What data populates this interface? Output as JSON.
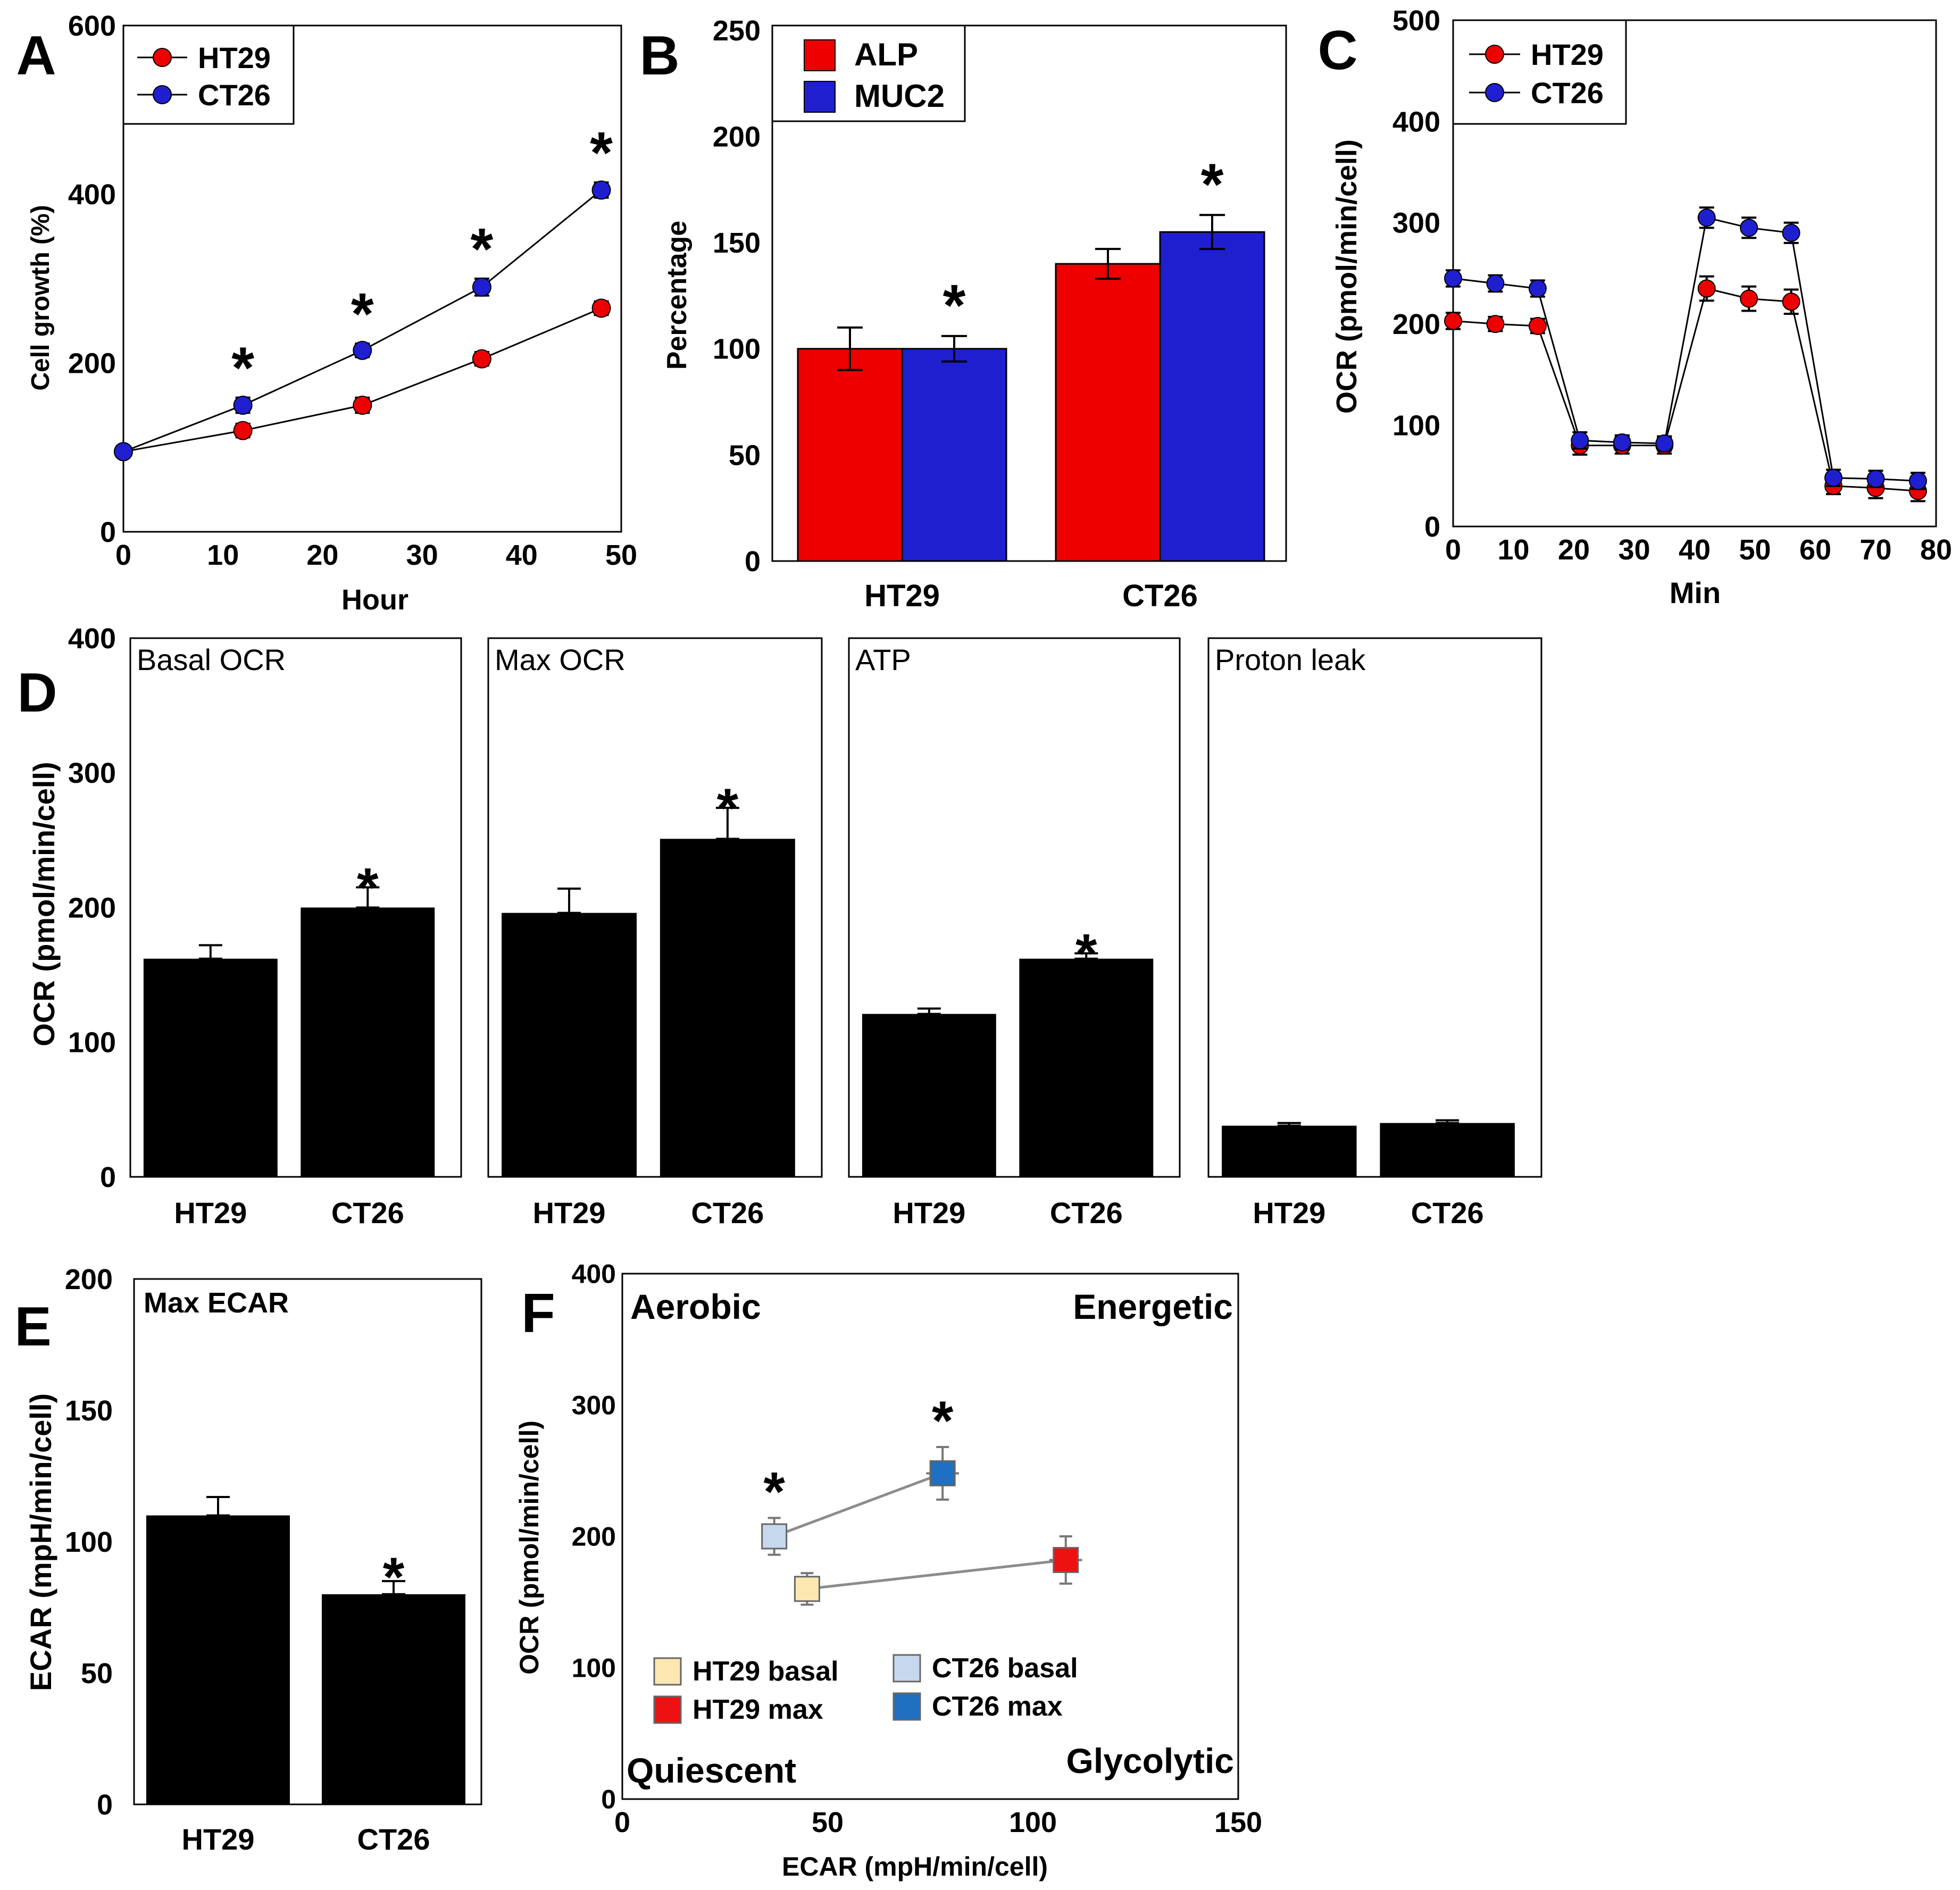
{
  "figure_description": "Multi-panel scientific figure comparing HT29 and CT26 cells",
  "colors": {
    "red": "#ee0000",
    "blue": "#1f1fd0",
    "black": "#000000",
    "grey_line": "#8c8c8c",
    "ht29_basal": "#fde7b0",
    "ht29_max": "#ee1111",
    "ct26_basal": "#c6d8ee",
    "ct26_max": "#1f70c0"
  },
  "chart_data": [
    {
      "id": "A",
      "panel_letter": "A",
      "type": "line",
      "xlabel": "Hour",
      "ylabel": "Cell  growth (%)",
      "xlim": [
        0,
        50
      ],
      "ylim": [
        0,
        600
      ],
      "xticks": [
        0,
        10,
        20,
        30,
        40,
        50
      ],
      "yticks": [
        0,
        200,
        400,
        600
      ],
      "legend": [
        "HT29",
        "CT26"
      ],
      "series": [
        {
          "name": "HT29",
          "color": "red",
          "x": [
            0,
            12,
            24,
            36,
            48
          ],
          "y": [
            95,
            120,
            150,
            205,
            265
          ],
          "err": [
            6,
            8,
            9,
            8,
            8
          ]
        },
        {
          "name": "CT26",
          "color": "blue",
          "x": [
            0,
            12,
            24,
            36,
            48
          ],
          "y": [
            95,
            150,
            215,
            290,
            405
          ],
          "err": [
            6,
            9,
            8,
            10,
            9
          ]
        }
      ],
      "significance": [
        {
          "x": 12,
          "label": "*"
        },
        {
          "x": 24,
          "label": "*"
        },
        {
          "x": 36,
          "label": "*"
        },
        {
          "x": 48,
          "label": "*"
        }
      ]
    },
    {
      "id": "B",
      "panel_letter": "B",
      "type": "bar",
      "xlabel": "",
      "ylabel": "Percentage",
      "ylim": [
        0,
        250
      ],
      "yticks": [
        0,
        50,
        100,
        150,
        200,
        250
      ],
      "categories": [
        "HT29",
        "CT26"
      ],
      "legend": [
        "ALP",
        "MUC2"
      ],
      "series": [
        {
          "name": "ALP",
          "color": "red",
          "values": [
            100,
            140
          ],
          "err": [
            10,
            7
          ]
        },
        {
          "name": "MUC2",
          "color": "blue",
          "values": [
            100,
            155
          ],
          "err": [
            6,
            8
          ]
        }
      ],
      "significance": [
        {
          "category": 0,
          "series": 1,
          "label": "*"
        },
        {
          "category": 1,
          "series": 1,
          "label": "*"
        }
      ]
    },
    {
      "id": "C",
      "panel_letter": "C",
      "type": "line",
      "xlabel": "Min",
      "ylabel": "OCR (pmol/min/cell)",
      "xlim": [
        0,
        80
      ],
      "ylim": [
        0,
        500
      ],
      "xticks": [
        0,
        10,
        20,
        30,
        40,
        50,
        60,
        70,
        80
      ],
      "yticks": [
        0,
        100,
        200,
        300,
        400,
        500
      ],
      "legend": [
        "HT29",
        "CT26"
      ],
      "series": [
        {
          "name": "HT29",
          "color": "red",
          "x": [
            0,
            7,
            14,
            21,
            28,
            35,
            42,
            49,
            56,
            63,
            70,
            77
          ],
          "y": [
            203,
            200,
            198,
            80,
            80,
            80,
            235,
            225,
            222,
            40,
            38,
            35
          ],
          "err": [
            8,
            7,
            7,
            9,
            8,
            8,
            12,
            12,
            12,
            8,
            10,
            10
          ]
        },
        {
          "name": "CT26",
          "color": "blue",
          "x": [
            0,
            7,
            14,
            21,
            28,
            35,
            42,
            49,
            56,
            63,
            70,
            77
          ],
          "y": [
            245,
            240,
            235,
            85,
            83,
            82,
            305,
            295,
            290,
            48,
            47,
            45
          ],
          "err": [
            8,
            8,
            8,
            8,
            7,
            7,
            10,
            10,
            10,
            8,
            8,
            8
          ]
        }
      ]
    },
    {
      "id": "D",
      "panel_letter": "D",
      "type": "bar",
      "ylabel": "OCR (pmol/min/cell)",
      "ylim": [
        0,
        400
      ],
      "yticks": [
        0,
        100,
        200,
        300,
        400
      ],
      "subpanels": [
        {
          "title": "Basal OCR",
          "categories": [
            "HT29",
            "CT26"
          ],
          "values": [
            162,
            200
          ],
          "err": [
            10,
            15
          ],
          "sig": [
            false,
            true
          ]
        },
        {
          "title": "Max OCR",
          "categories": [
            "HT29",
            "CT26"
          ],
          "values": [
            196,
            251
          ],
          "err": [
            18,
            23
          ],
          "sig": [
            false,
            true
          ]
        },
        {
          "title": "ATP",
          "categories": [
            "HT29",
            "CT26"
          ],
          "values": [
            121,
            162
          ],
          "err": [
            4,
            4
          ],
          "sig": [
            false,
            true
          ]
        },
        {
          "title": "Proton leak",
          "categories": [
            "HT29",
            "CT26"
          ],
          "values": [
            38,
            40
          ],
          "err": [
            2,
            2
          ],
          "sig": [
            false,
            false
          ]
        }
      ]
    },
    {
      "id": "E",
      "panel_letter": "E",
      "type": "bar",
      "title": "Max ECAR",
      "ylabel": "ECAR (mpH/min/cell)",
      "ylim": [
        0,
        200
      ],
      "yticks": [
        0,
        50,
        100,
        150,
        200
      ],
      "categories": [
        "HT29",
        "CT26"
      ],
      "values": [
        110,
        80
      ],
      "err": [
        7,
        5
      ],
      "sig": [
        false,
        true
      ]
    },
    {
      "id": "F",
      "panel_letter": "F",
      "type": "scatter",
      "xlabel": "ECAR (mpH/min/cell)",
      "ylabel": "OCR (pmol/min/cell)",
      "xlim": [
        0,
        150
      ],
      "ylim": [
        0,
        400
      ],
      "xticks": [
        0,
        50,
        100,
        150
      ],
      "yticks": [
        0,
        100,
        200,
        300,
        400
      ],
      "quadrants": {
        "top_left": "Aerobic",
        "top_right": "Energetic",
        "bottom_left": "Quiescent",
        "bottom_right": "Glycolytic"
      },
      "points": [
        {
          "name": "HT29 basal",
          "color": "ht29_basal",
          "x": 45,
          "y": 160,
          "xerr": 3,
          "yerr": 12,
          "sig": false
        },
        {
          "name": "HT29 max",
          "color": "ht29_max",
          "x": 108,
          "y": 182,
          "xerr": 4,
          "yerr": 18,
          "sig": false
        },
        {
          "name": "CT26 basal",
          "color": "ct26_basal",
          "x": 37,
          "y": 200,
          "xerr": 3,
          "yerr": 14,
          "sig": true
        },
        {
          "name": "CT26 max",
          "color": "ct26_max",
          "x": 78,
          "y": 248,
          "xerr": 4,
          "yerr": 20,
          "sig": true
        }
      ],
      "connections": [
        [
          "HT29 basal",
          "HT29 max"
        ],
        [
          "CT26 basal",
          "CT26 max"
        ]
      ],
      "legend_order": [
        "HT29 basal",
        "HT29 max",
        "CT26 basal",
        "CT26 max"
      ]
    }
  ]
}
